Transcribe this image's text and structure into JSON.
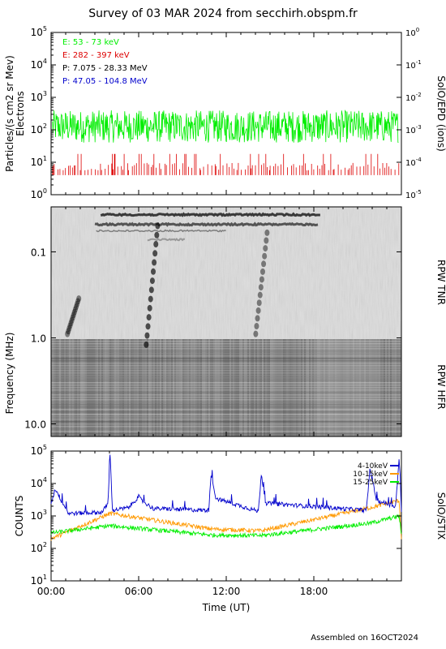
{
  "page": {
    "title": "Survey of 03 MAR 2024 from secchirh.obspm.fr",
    "footer": "Assembled on 16OCT2024"
  },
  "colors": {
    "green": "#00ee00",
    "red": "#dd0000",
    "black": "#000000",
    "blue": "#0000cc",
    "orange": "#ff9900"
  },
  "chart_data": [
    {
      "type": "line",
      "ylabel": "Particles/(s cm2 sr Mev)",
      "ylabel2": "Electrons",
      "right_label": "SolO/EPD (ions)",
      "log_scale": true,
      "ylim": [
        1,
        100000
      ],
      "yticks": [
        {
          "base": "10",
          "exp": "0"
        },
        {
          "base": "10",
          "exp": "1"
        },
        {
          "base": "10",
          "exp": "2"
        },
        {
          "base": "10",
          "exp": "3"
        },
        {
          "base": "10",
          "exp": "4"
        },
        {
          "base": "10",
          "exp": "5"
        }
      ],
      "ylim_right": [
        1e-05,
        1
      ],
      "yticks_right": [
        {
          "base": "10",
          "exp": "-5"
        },
        {
          "base": "10",
          "exp": "-4"
        },
        {
          "base": "10",
          "exp": "-3"
        },
        {
          "base": "10",
          "exp": "-2"
        },
        {
          "base": "10",
          "exp": "-1"
        },
        {
          "base": "10",
          "exp": "0"
        }
      ],
      "legend": [
        {
          "label": "E: 53 - 73 keV",
          "color": "#00ee00"
        },
        {
          "label": "E: 282 - 397 keV",
          "color": "#dd0000"
        },
        {
          "label": "P: 7.075 - 28.33 MeV",
          "color": "#000000"
        },
        {
          "label": "P: 47.05 - 104.8 MeV",
          "color": "#0000cc"
        }
      ],
      "series": [
        {
          "name": "E: 53 - 73 keV",
          "level": 130,
          "noise_low": 40,
          "noise_high": 400
        },
        {
          "name": "E: 282 - 397 keV",
          "level": 8,
          "noise_low": 4,
          "noise_high": 18
        }
      ]
    },
    {
      "type": "heatmap",
      "ylabel": "Frequency (MHz)",
      "yticks": [
        "0.1",
        "1.0",
        "10.0"
      ],
      "right_labels": [
        "RPW TNR",
        "RPW HFR"
      ],
      "log_scale": true,
      "ylim_mhz": [
        0.03,
        14
      ]
    },
    {
      "type": "line",
      "ylabel": "COUNTS",
      "right_label": "SolO/STIX",
      "log_scale": true,
      "ylim": [
        10,
        100000
      ],
      "yticks": [
        {
          "base": "10",
          "exp": "1"
        },
        {
          "base": "10",
          "exp": "2"
        },
        {
          "base": "10",
          "exp": "3"
        },
        {
          "base": "10",
          "exp": "4"
        },
        {
          "base": "10",
          "exp": "5"
        }
      ],
      "xlabel": "Time (UT)",
      "xticks": [
        "00:00",
        "06:00",
        "12:00",
        "18:00"
      ],
      "xlim_hours": [
        0,
        24
      ],
      "legend": [
        {
          "label": "4-10keV",
          "color": "#0000cc"
        },
        {
          "label": "10-15keV",
          "color": "#ff9900"
        },
        {
          "label": "15-25keV",
          "color": "#00ee00"
        }
      ],
      "series": [
        {
          "name": "4-10keV",
          "baseline": 1300,
          "points": [
            [
              0,
              2500
            ],
            [
              0.3,
              7000
            ],
            [
              0.7,
              3000
            ],
            [
              1.2,
              1200
            ],
            [
              3.5,
              1300
            ],
            [
              3.9,
              2500
            ],
            [
              4.05,
              90000
            ],
            [
              4.2,
              1500
            ],
            [
              5.3,
              1800
            ],
            [
              6.0,
              4000
            ],
            [
              6.2,
              3000
            ],
            [
              7.0,
              1700
            ],
            [
              10.8,
              1500
            ],
            [
              10.95,
              20000
            ],
            [
              11.3,
              3500
            ],
            [
              14.2,
              1400
            ],
            [
              14.4,
              20000
            ],
            [
              14.7,
              2500
            ],
            [
              21.6,
              1500
            ],
            [
              21.85,
              30000
            ],
            [
              22.3,
              3000
            ],
            [
              23.6,
              2000
            ],
            [
              23.85,
              60000
            ],
            [
              24,
              1500
            ]
          ]
        },
        {
          "name": "10-15keV",
          "baseline": 190,
          "points": [
            [
              0,
              200
            ],
            [
              4.05,
              1200
            ],
            [
              10.95,
              400
            ],
            [
              14.4,
              350
            ],
            [
              21.85,
              1800
            ],
            [
              23.85,
              3000
            ],
            [
              24,
              200
            ]
          ]
        },
        {
          "name": "15-25keV",
          "baseline": 240,
          "points": [
            [
              0,
              300
            ],
            [
              4.05,
              500
            ],
            [
              10.95,
              260
            ],
            [
              14.4,
              250
            ],
            [
              21.85,
              600
            ],
            [
              23.85,
              1000
            ],
            [
              24,
              250
            ]
          ]
        }
      ]
    }
  ]
}
